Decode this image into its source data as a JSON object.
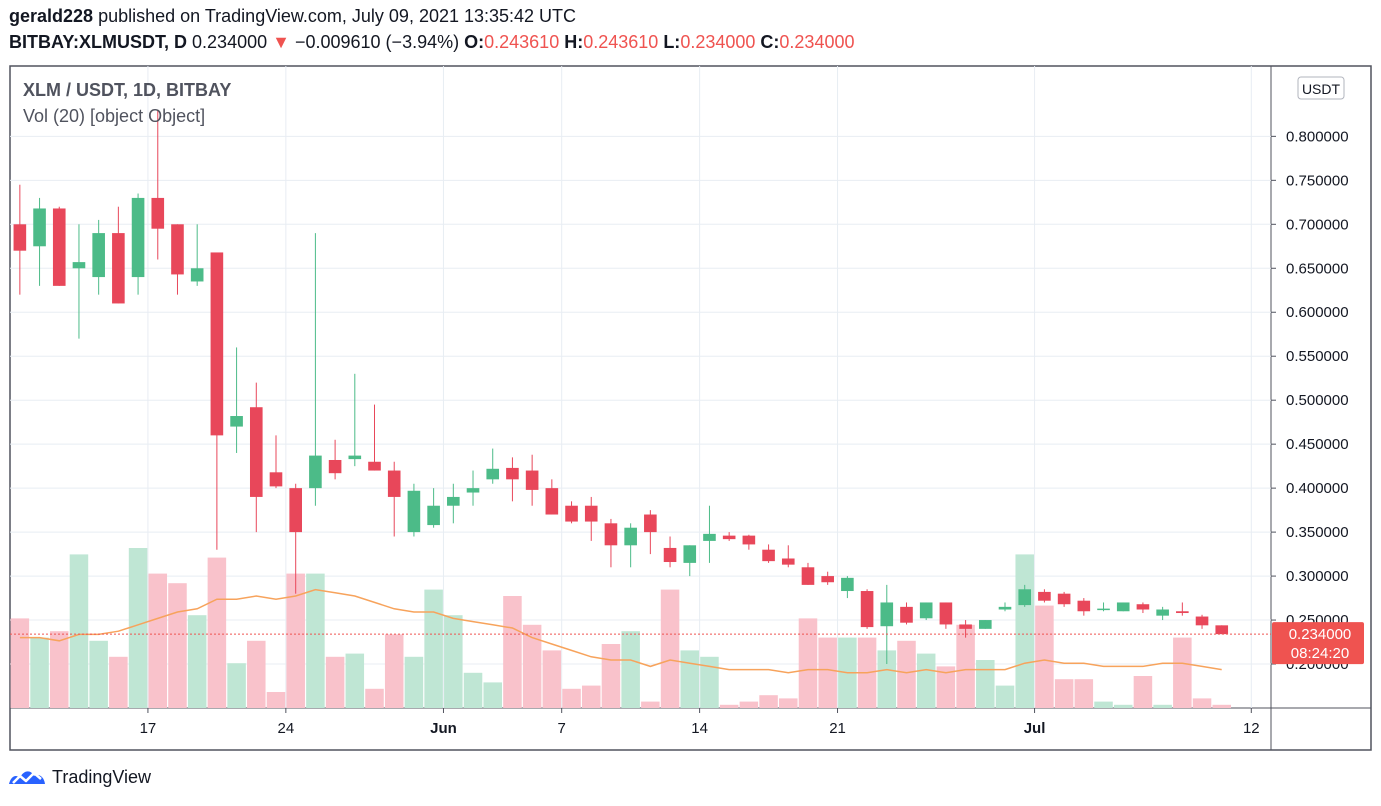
{
  "header": {
    "user": "gerald228",
    "published": "published on TradingView.com, July 09, 2021 13:35:42 UTC",
    "symbol": "BITBAY:XLMUSDT, D",
    "last": "0.234000",
    "arrow": "▼",
    "change": "−0.009610 (−3.94%)",
    "o_label": "O:",
    "o_value": "0.243610",
    "h_label": "H:",
    "h_value": "0.243610",
    "l_label": "L:",
    "l_value": "0.234000",
    "c_label": "C:",
    "c_value": "0.234000"
  },
  "legend": {
    "title": "XLM / USDT, 1D, BITBAY",
    "volume": "Vol (20) [object Object]"
  },
  "currency_badge": "USDT",
  "price_tag": {
    "price": "0.234000",
    "countdown": "08:24:20"
  },
  "footer": {
    "brand": "TradingView"
  },
  "colors": {
    "up": "#26a69a",
    "down": "#ef5350",
    "candle_up": "#4cbb88",
    "candle_down": "#e8475a",
    "vol_up": "#bfe6d4",
    "vol_down": "#f9c2cb",
    "ma": "#f7a35c",
    "grid": "#e8edf3",
    "axis_text": "#131722"
  },
  "chart_data": {
    "type": "candlestick",
    "symbol": "XLM / USDT, 1D, BITBAY",
    "ylim": [
      0.15,
      0.88
    ],
    "y_ticks": [
      "0.200000",
      "0.250000",
      "0.300000",
      "0.350000",
      "0.400000",
      "0.450000",
      "0.500000",
      "0.550000",
      "0.600000",
      "0.650000",
      "0.700000",
      "0.750000",
      "0.800000"
    ],
    "x_ticks": [
      {
        "label": "17",
        "date": "2021-05-17"
      },
      {
        "label": "24",
        "date": "2021-05-24"
      },
      {
        "label": "Jun",
        "date": "2021-06-01"
      },
      {
        "label": "7",
        "date": "2021-06-07"
      },
      {
        "label": "14",
        "date": "2021-06-14"
      },
      {
        "label": "21",
        "date": "2021-06-21"
      },
      {
        "label": "Jul",
        "date": "2021-07-01"
      },
      {
        "label": "12",
        "date": "2021-07-12"
      }
    ],
    "x_range": [
      "2021-05-10",
      "2021-07-13"
    ],
    "columns": [
      "date",
      "open",
      "high",
      "low",
      "close",
      "volume",
      "vol_ma20"
    ],
    "candles": [
      [
        "2021-05-10",
        0.7,
        0.745,
        0.62,
        0.67,
        0.28,
        0.22
      ],
      [
        "2021-05-11",
        0.675,
        0.73,
        0.63,
        0.718,
        0.22,
        0.22
      ],
      [
        "2021-05-12",
        0.718,
        0.72,
        0.63,
        0.63,
        0.24,
        0.21
      ],
      [
        "2021-05-13",
        0.65,
        0.7,
        0.57,
        0.657,
        0.48,
        0.23
      ],
      [
        "2021-05-14",
        0.64,
        0.705,
        0.62,
        0.69,
        0.21,
        0.23
      ],
      [
        "2021-05-15",
        0.69,
        0.72,
        0.61,
        0.61,
        0.16,
        0.24
      ],
      [
        "2021-05-16",
        0.64,
        0.735,
        0.62,
        0.73,
        0.5,
        0.26
      ],
      [
        "2021-05-17",
        0.73,
        0.83,
        0.66,
        0.695,
        0.42,
        0.28
      ],
      [
        "2021-05-18",
        0.7,
        0.7,
        0.62,
        0.643,
        0.39,
        0.3
      ],
      [
        "2021-05-19",
        0.635,
        0.7,
        0.63,
        0.65,
        0.29,
        0.31
      ],
      [
        "2021-05-20",
        0.668,
        0.668,
        0.33,
        0.46,
        0.47,
        0.34
      ],
      [
        "2021-05-21",
        0.47,
        0.56,
        0.44,
        0.482,
        0.14,
        0.34
      ],
      [
        "2021-05-22",
        0.492,
        0.52,
        0.35,
        0.39,
        0.21,
        0.35
      ],
      [
        "2021-05-23",
        0.418,
        0.46,
        0.4,
        0.402,
        0.05,
        0.34
      ],
      [
        "2021-05-24",
        0.4,
        0.405,
        0.28,
        0.35,
        0.42,
        0.35
      ],
      [
        "2021-05-25",
        0.4,
        0.69,
        0.38,
        0.437,
        0.42,
        0.37
      ],
      [
        "2021-05-26",
        0.432,
        0.455,
        0.41,
        0.417,
        0.16,
        0.36
      ],
      [
        "2021-05-27",
        0.433,
        0.53,
        0.425,
        0.437,
        0.17,
        0.35
      ],
      [
        "2021-05-28",
        0.43,
        0.495,
        0.42,
        0.42,
        0.06,
        0.33
      ],
      [
        "2021-05-29",
        0.42,
        0.43,
        0.345,
        0.39,
        0.23,
        0.31
      ],
      [
        "2021-05-30",
        0.35,
        0.405,
        0.345,
        0.397,
        0.16,
        0.3
      ],
      [
        "2021-05-31",
        0.358,
        0.4,
        0.355,
        0.38,
        0.37,
        0.3
      ],
      [
        "2021-06-01",
        0.38,
        0.405,
        0.36,
        0.39,
        0.29,
        0.28
      ],
      [
        "2021-06-02",
        0.395,
        0.42,
        0.38,
        0.4,
        0.11,
        0.27
      ],
      [
        "2021-06-03",
        0.41,
        0.445,
        0.405,
        0.422,
        0.08,
        0.26
      ],
      [
        "2021-06-04",
        0.423,
        0.435,
        0.385,
        0.41,
        0.35,
        0.25
      ],
      [
        "2021-06-05",
        0.42,
        0.438,
        0.38,
        0.398,
        0.26,
        0.22
      ],
      [
        "2021-06-06",
        0.4,
        0.41,
        0.37,
        0.37,
        0.18,
        0.2
      ],
      [
        "2021-06-07",
        0.38,
        0.385,
        0.36,
        0.362,
        0.06,
        0.18
      ],
      [
        "2021-06-08",
        0.38,
        0.39,
        0.34,
        0.362,
        0.07,
        0.16
      ],
      [
        "2021-06-09",
        0.36,
        0.365,
        0.31,
        0.335,
        0.2,
        0.15
      ],
      [
        "2021-06-10",
        0.335,
        0.36,
        0.31,
        0.355,
        0.24,
        0.15
      ],
      [
        "2021-06-11",
        0.37,
        0.375,
        0.325,
        0.35,
        0.02,
        0.13
      ],
      [
        "2021-06-12",
        0.332,
        0.345,
        0.31,
        0.316,
        0.37,
        0.15
      ],
      [
        "2021-06-13",
        0.315,
        0.335,
        0.3,
        0.335,
        0.18,
        0.14
      ],
      [
        "2021-06-14",
        0.34,
        0.38,
        0.315,
        0.348,
        0.16,
        0.13
      ],
      [
        "2021-06-15",
        0.346,
        0.35,
        0.34,
        0.342,
        0.01,
        0.12
      ],
      [
        "2021-06-16",
        0.346,
        0.347,
        0.33,
        0.336,
        0.02,
        0.12
      ],
      [
        "2021-06-17",
        0.33,
        0.336,
        0.315,
        0.317,
        0.04,
        0.12
      ],
      [
        "2021-06-18",
        0.32,
        0.335,
        0.31,
        0.313,
        0.03,
        0.11
      ],
      [
        "2021-06-19",
        0.31,
        0.315,
        0.29,
        0.29,
        0.28,
        0.12
      ],
      [
        "2021-06-20",
        0.3,
        0.305,
        0.29,
        0.293,
        0.22,
        0.12
      ],
      [
        "2021-06-21",
        0.283,
        0.3,
        0.275,
        0.298,
        0.22,
        0.11
      ],
      [
        "2021-06-22",
        0.283,
        0.285,
        0.24,
        0.242,
        0.22,
        0.11
      ],
      [
        "2021-06-23",
        0.243,
        0.29,
        0.2,
        0.27,
        0.18,
        0.12
      ],
      [
        "2021-06-24",
        0.265,
        0.27,
        0.245,
        0.247,
        0.21,
        0.11
      ],
      [
        "2021-06-25",
        0.252,
        0.27,
        0.25,
        0.27,
        0.17,
        0.12
      ],
      [
        "2021-06-26",
        0.27,
        0.27,
        0.24,
        0.245,
        0.13,
        0.11
      ],
      [
        "2021-06-27",
        0.245,
        0.25,
        0.23,
        0.24,
        0.26,
        0.12
      ],
      [
        "2021-06-28",
        0.24,
        0.25,
        0.24,
        0.25,
        0.15,
        0.12
      ],
      [
        "2021-06-29",
        0.262,
        0.27,
        0.26,
        0.265,
        0.07,
        0.12
      ],
      [
        "2021-06-30",
        0.267,
        0.29,
        0.265,
        0.285,
        0.48,
        0.14
      ],
      [
        "2021-07-01",
        0.282,
        0.285,
        0.27,
        0.272,
        0.32,
        0.15
      ],
      [
        "2021-07-02",
        0.28,
        0.282,
        0.265,
        0.268,
        0.09,
        0.14
      ],
      [
        "2021-07-03",
        0.272,
        0.275,
        0.255,
        0.26,
        0.09,
        0.14
      ],
      [
        "2021-07-04",
        0.262,
        0.27,
        0.26,
        0.263,
        0.02,
        0.13
      ],
      [
        "2021-07-05",
        0.26,
        0.27,
        0.26,
        0.27,
        0.01,
        0.13
      ],
      [
        "2021-07-06",
        0.268,
        0.27,
        0.258,
        0.262,
        0.1,
        0.13
      ],
      [
        "2021-07-07",
        0.255,
        0.265,
        0.25,
        0.262,
        0.01,
        0.14
      ],
      [
        "2021-07-08",
        0.26,
        0.27,
        0.255,
        0.258,
        0.22,
        0.14
      ],
      [
        "2021-07-09",
        0.254,
        0.256,
        0.24,
        0.244,
        0.03,
        0.13
      ],
      [
        "2021-07-10",
        0.244,
        0.244,
        0.234,
        0.234,
        0.01,
        0.12
      ]
    ]
  }
}
